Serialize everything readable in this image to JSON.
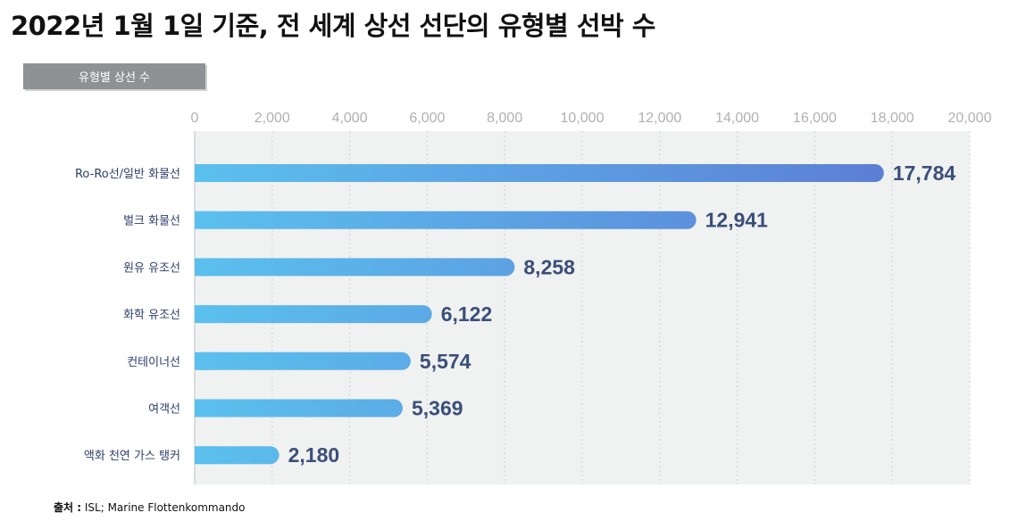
{
  "title": "2022년 1월 1일 기준, 전 세계 상선 선단의 유형별 선박 수",
  "subtitle": "유형별 상선 수",
  "source_prefix": "출처 :",
  "source_text": " ISL; Marine Flottenkommando",
  "colors": {
    "bar_start": "#5bc0ee",
    "bar_end": "#5c7fd6",
    "plot_bg": "#f0f1f1",
    "grid": "#cfd3d6"
  },
  "chart_data": {
    "type": "bar",
    "orientation": "horizontal",
    "title": "2022년 1월 1일 기준, 전 세계 상선 선단의 유형별 선박 수",
    "subtitle": "유형별 상선 수",
    "categories": [
      "Ro-Ro선/일반 화물선",
      "벌크 화물선",
      "원유 유조선",
      "화학 유조선",
      "컨테이너선",
      "여객선",
      "액화 천연 가스 탱커"
    ],
    "values": [
      17784,
      12941,
      8258,
      6122,
      5574,
      5369,
      2180
    ],
    "value_labels": [
      "17,784",
      "12,941",
      "8,258",
      "6,122",
      "5,574",
      "5,369",
      "2,180"
    ],
    "xlim": [
      0,
      20000
    ],
    "xticks": [
      0,
      2000,
      4000,
      6000,
      8000,
      10000,
      12000,
      14000,
      16000,
      18000,
      20000
    ],
    "xtick_labels": [
      "0",
      "2,000",
      "4,000",
      "6,000",
      "8,000",
      "10,000",
      "12,000",
      "14,000",
      "16,000",
      "18,000",
      "20,000"
    ],
    "xlabel": "",
    "ylabel": "",
    "grid": true,
    "axis_position": "top",
    "legend": "none"
  }
}
